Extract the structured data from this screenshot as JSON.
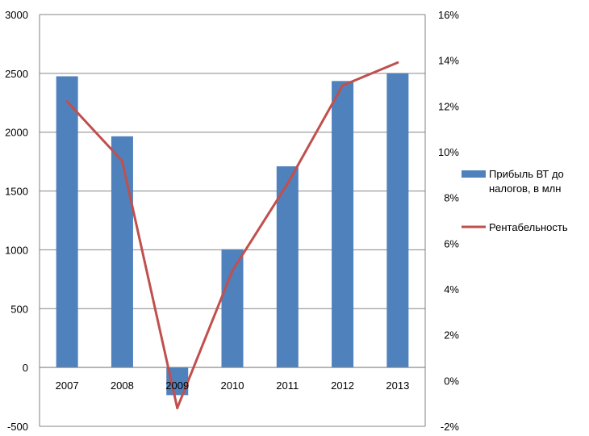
{
  "chart_data": {
    "type": "bar+line",
    "categories": [
      "2007",
      "2008",
      "2009",
      "2010",
      "2011",
      "2012",
      "2013"
    ],
    "series": [
      {
        "name": "Прибыль ВТ до налогов, в млн",
        "type": "bar",
        "axis": "left",
        "color": "#4f81bd",
        "values": [
          2475,
          1965,
          -235,
          1005,
          1710,
          2435,
          2500
        ]
      },
      {
        "name": "Рентабельность",
        "type": "line",
        "axis": "right",
        "color": "#c0504d",
        "values": [
          12.2,
          9.6,
          -1.2,
          4.8,
          8.6,
          12.9,
          13.9
        ]
      }
    ],
    "y_left": {
      "min": -500,
      "max": 3000,
      "ticks": [
        "3000",
        "2500",
        "2000",
        "1500",
        "1000",
        "500",
        "0",
        "-500"
      ]
    },
    "y_right": {
      "min": -2,
      "max": 16,
      "ticks": [
        "16%",
        "14%",
        "12%",
        "10%",
        "8%",
        "6%",
        "4%",
        "2%",
        "0%",
        "-2%"
      ]
    },
    "legend": {
      "position": "right",
      "bar_label_lines": [
        "Прибыль ВТ до",
        "налогов, в млн"
      ],
      "line_label": "Рентабельность"
    },
    "grid": true
  }
}
